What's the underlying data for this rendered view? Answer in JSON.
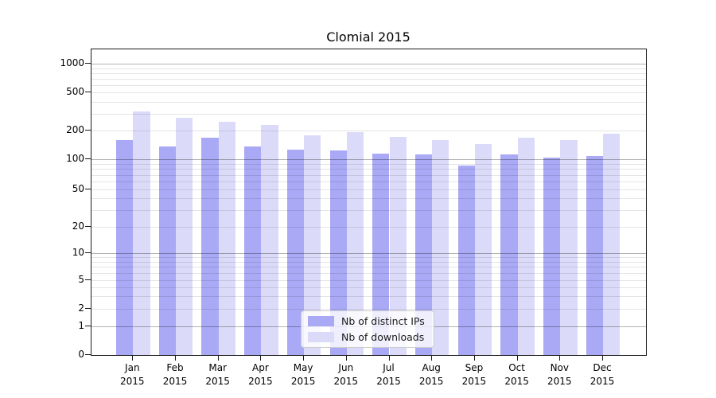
{
  "title": "Clomial 2015",
  "legend": {
    "position": "lower center",
    "items": [
      {
        "label": "Nb of distinct IPs",
        "color": "#a9a9f5"
      },
      {
        "label": "Nb of downloads",
        "color": "#dbdbf9"
      }
    ]
  },
  "chart_data": {
    "type": "bar",
    "title": "Clomial 2015",
    "categories": [
      "Jan 2015",
      "Feb 2015",
      "Mar 2015",
      "Apr 2015",
      "May 2015",
      "Jun 2015",
      "Jul 2015",
      "Aug 2015",
      "Sep 2015",
      "Oct 2015",
      "Nov 2015",
      "Dec 2015"
    ],
    "series": [
      {
        "name": "Nb of distinct IPs",
        "color": "#a9a9f5",
        "values": [
          160,
          137,
          168,
          137,
          127,
          125,
          116,
          114,
          87,
          112,
          104,
          108
        ]
      },
      {
        "name": "Nb of downloads",
        "color": "#dbdbf9",
        "values": [
          320,
          274,
          250,
          230,
          180,
          195,
          171,
          159,
          145,
          170,
          160,
          185
        ]
      }
    ],
    "xlabel": "",
    "ylabel": "",
    "yscale": "symlog",
    "y_ticks": [
      0,
      1,
      2,
      5,
      10,
      20,
      50,
      100,
      200,
      500,
      1000
    ],
    "ylim": [
      0,
      1360
    ],
    "grid": "horizontal, log major and minor lines",
    "legend_position": "lower center"
  }
}
